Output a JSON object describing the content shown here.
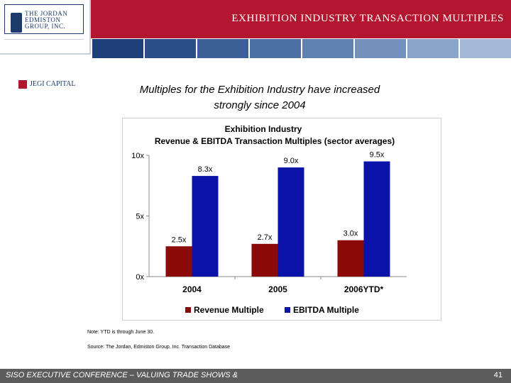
{
  "header": {
    "title": "EXHIBITION INDUSTRY TRANSACTION MULTIPLES",
    "logo_text": "THE JORDAN\nEDMISTON\nGROUP, INC.",
    "logo_sub": "JEGI CAPITAL",
    "band_colors": [
      "#1f3f7a",
      "#2c4f8a",
      "#3b5f96",
      "#4d70a3",
      "#5f81b0",
      "#7391bc",
      "#8aa3c8",
      "#a3b8d6"
    ]
  },
  "subtitle": {
    "line1": "Multiples for the Exhibition Industry have increased",
    "line2": "strongly since 2004"
  },
  "chart_data": {
    "type": "bar",
    "title": "Exhibition Industry",
    "subtitle": "Revenue & EBITDA Transaction Multiples (sector averages)",
    "categories": [
      "2004",
      "2005",
      "2006YTD*"
    ],
    "series": [
      {
        "name": "Revenue Multiple",
        "color": "#8b0a0a",
        "values": [
          2.5,
          2.7,
          3.0
        ],
        "labels": [
          "2.5x",
          "2.7x",
          "3.0x"
        ]
      },
      {
        "name": "EBITDA Multiple",
        "color": "#0b12a8",
        "values": [
          8.3,
          9.0,
          9.5
        ],
        "labels": [
          "8.3x",
          "9.0x",
          "9.5x"
        ]
      }
    ],
    "y_ticks": [
      {
        "value": 10,
        "label": "10x"
      },
      {
        "value": 5,
        "label": "5x"
      },
      {
        "value": 0,
        "label": "0x"
      }
    ],
    "ylim": [
      0,
      10
    ],
    "grid": false,
    "legend": "bottom"
  },
  "notes": {
    "note": "Note: YTD is through June 30.",
    "source": "Source: The Jordan, Edmiston Group, Inc. Transaction Database"
  },
  "footer": {
    "left": "SISO EXECUTIVE CONFERENCE – VALUING TRADE SHOWS &",
    "page": "41"
  }
}
